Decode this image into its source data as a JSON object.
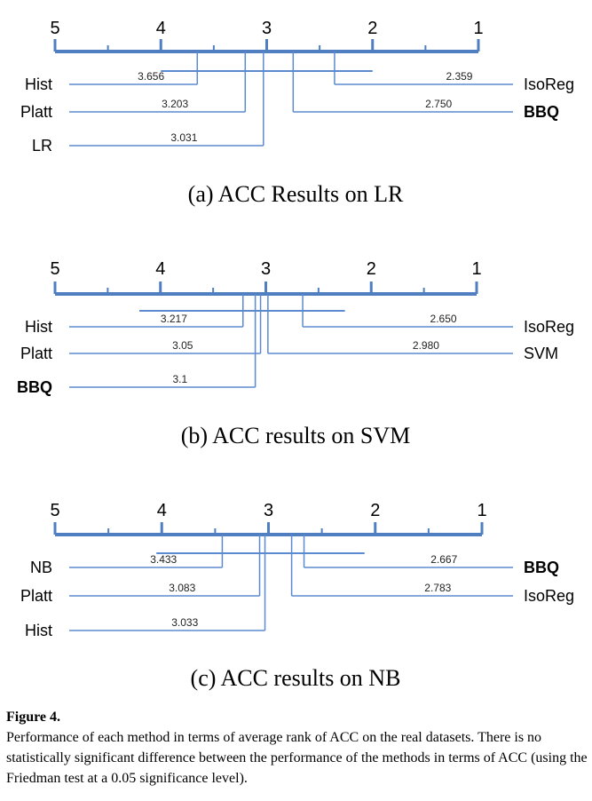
{
  "chart_data": [
    {
      "type": "critical-difference",
      "subtitle": "(a) ACC Results on LR",
      "axis_ticks": [
        "5",
        "4",
        "3",
        "2",
        "1"
      ],
      "cd_bar": [
        2.0,
        4.0
      ],
      "methods": [
        {
          "name": "Hist",
          "rank": 3.656,
          "rank_label": "3.656",
          "side": "left",
          "bold": false
        },
        {
          "name": "Platt",
          "rank": 3.203,
          "rank_label": "3.203",
          "side": "left",
          "bold": false
        },
        {
          "name": "LR",
          "rank": 3.031,
          "rank_label": "3.031",
          "side": "left",
          "bold": false
        },
        {
          "name": "IsoReg",
          "rank": 2.359,
          "rank_label": "2.359",
          "side": "right",
          "bold": false
        },
        {
          "name": "BBQ",
          "rank": 2.75,
          "rank_label": "2.750",
          "side": "right",
          "bold": true
        }
      ]
    },
    {
      "type": "critical-difference",
      "subtitle": "(b) ACC results on SVM",
      "axis_ticks": [
        "5",
        "4",
        "3",
        "2",
        "1"
      ],
      "cd_bar": [
        2.25,
        4.2
      ],
      "methods": [
        {
          "name": "Hist",
          "rank": 3.217,
          "rank_label": "3.217",
          "side": "left",
          "bold": false
        },
        {
          "name": "Platt",
          "rank": 3.05,
          "rank_label": "3.05",
          "side": "left",
          "bold": false
        },
        {
          "name": "BBQ",
          "rank": 3.1,
          "rank_label": "3.1",
          "side": "left",
          "bold": true
        },
        {
          "name": "IsoReg",
          "rank": 2.65,
          "rank_label": "2.650",
          "side": "right",
          "bold": false
        },
        {
          "name": "SVM",
          "rank": 2.98,
          "rank_label": "2.980",
          "side": "right",
          "bold": false
        }
      ]
    },
    {
      "type": "critical-difference",
      "subtitle": "(c) ACC results on NB",
      "axis_ticks": [
        "5",
        "4",
        "3",
        "2",
        "1"
      ],
      "cd_bar": [
        2.1,
        4.05
      ],
      "methods": [
        {
          "name": "NB",
          "rank": 3.433,
          "rank_label": "3.433",
          "side": "left",
          "bold": false
        },
        {
          "name": "Platt",
          "rank": 3.083,
          "rank_label": "3.083",
          "side": "left",
          "bold": false
        },
        {
          "name": "Hist",
          "rank": 3.033,
          "rank_label": "3.033",
          "side": "left",
          "bold": false
        },
        {
          "name": "BBQ",
          "rank": 2.667,
          "rank_label": "2.667",
          "side": "right",
          "bold": true
        },
        {
          "name": "IsoReg",
          "rank": 2.783,
          "rank_label": "2.783",
          "side": "right",
          "bold": false
        }
      ]
    }
  ],
  "caption": {
    "title": "Figure 4.",
    "text": "Performance of each method in terms of average rank of ACC on the real datasets. There is no statistically significant difference between the performance of the methods in terms of ACC (using the Friedman test at a 0.05 significance level)."
  },
  "colors": {
    "axis": "#4f7fc0",
    "line": "#5b8ad0",
    "text": "#000000"
  }
}
